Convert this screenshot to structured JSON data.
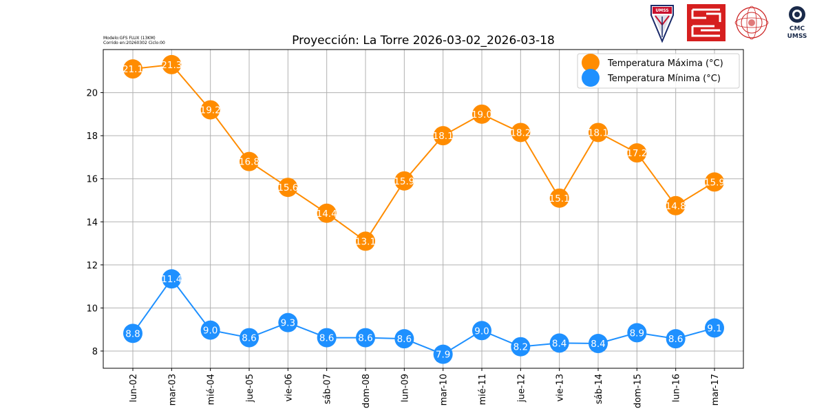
{
  "header": {
    "model_line": "Modelo:GFS FLUX (13KM)",
    "run_line": "Corrido en:20260302 Ciclo:00",
    "cmc_line1": "CMC",
    "cmc_line2": "UMSS",
    "umss_shield_text": "UMSS"
  },
  "chart_data": {
    "type": "line",
    "title": "Proyección: La Torre 2026-03-02_2026-03-18",
    "xlabel": "",
    "ylabel": "",
    "categories": [
      "lun-02",
      "mar-03",
      "mié-04",
      "jue-05",
      "vie-06",
      "sáb-07",
      "dom-08",
      "lun-09",
      "mar-10",
      "mié-11",
      "jue-12",
      "vie-13",
      "sáb-14",
      "dom-15",
      "lun-16",
      "mar-17"
    ],
    "ylim": [
      7.2,
      22.0
    ],
    "yticks": [
      8,
      10,
      12,
      14,
      16,
      18,
      20
    ],
    "grid": true,
    "legend_position": "top-right",
    "series": [
      {
        "name": "Temperatura Máxima  (°C)",
        "color": "#ff8c00",
        "values": [
          21.1,
          21.3,
          19.2,
          16.8,
          15.6,
          14.4,
          13.1,
          15.9,
          18.1,
          19.0,
          18.2,
          15.1,
          18.1,
          17.2,
          14.8,
          15.9
        ],
        "plotted": [
          21.1,
          21.3,
          19.2,
          16.8,
          15.6,
          14.4,
          13.1,
          15.9,
          18.0,
          19.0,
          18.15,
          15.1,
          18.15,
          17.2,
          14.75,
          15.85
        ]
      },
      {
        "name": "Temperatura Mínima  (°C)",
        "color": "#1e90ff",
        "values": [
          8.8,
          11.4,
          9.0,
          8.6,
          9.3,
          8.6,
          8.6,
          8.6,
          7.9,
          9.0,
          8.2,
          8.4,
          8.4,
          8.9,
          8.6,
          9.1
        ],
        "plotted": [
          8.82,
          11.35,
          8.97,
          8.62,
          9.32,
          8.62,
          8.62,
          8.57,
          7.85,
          8.95,
          8.2,
          8.37,
          8.35,
          8.85,
          8.57,
          9.07
        ]
      }
    ]
  }
}
